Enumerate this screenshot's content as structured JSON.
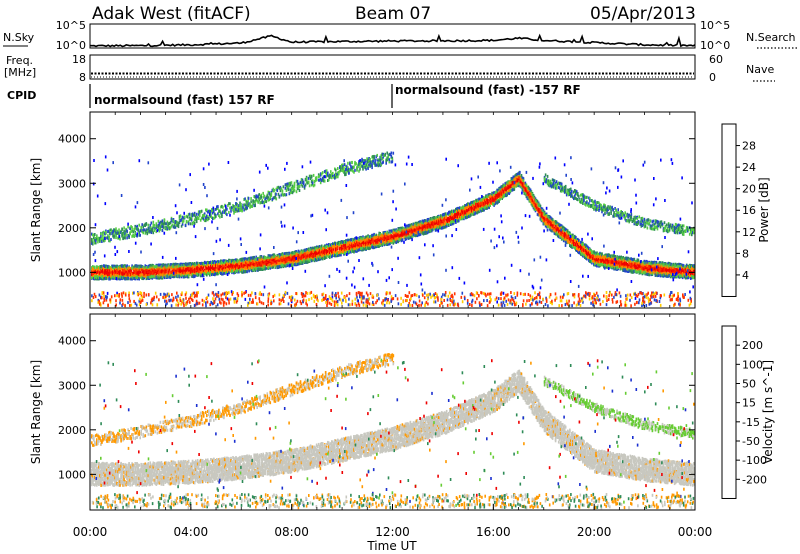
{
  "header": {
    "station": "Adak West (fitACF)",
    "beam": "Beam 07",
    "date": "05/Apr/2013"
  },
  "chart_data": [
    {
      "type": "line",
      "title": "",
      "panel": "nsky-nsearch",
      "xlabel": "",
      "left_label": "N.Sky",
      "left_ticks": [
        "10^5",
        "10^0"
      ],
      "right_label": "N.Search",
      "right_ticks": [
        "10^5",
        "10^0"
      ],
      "x_hours": [
        0,
        2,
        4,
        6,
        7.2,
        8,
        10,
        12,
        14,
        16,
        17,
        18,
        20,
        22,
        24
      ],
      "y_fraction": [
        0.05,
        0.06,
        0.1,
        0.18,
        0.5,
        0.22,
        0.25,
        0.27,
        0.28,
        0.3,
        0.4,
        0.3,
        0.2,
        0.1,
        0.06
      ]
    },
    {
      "type": "line",
      "panel": "freq-nave",
      "left_label": "Freq.",
      "left_unit": "[MHz]",
      "left_ticks": [
        "18",
        "8"
      ],
      "right_label": "Nave",
      "right_ticks": [
        "60",
        "0"
      ],
      "freq_mhz": 10.5,
      "nave": 0
    },
    {
      "type": "table",
      "panel": "cpid",
      "label": "CPID",
      "segments": [
        {
          "start_hour": 0,
          "end_hour": 12,
          "text": "normalsound (fast) 157 RF"
        },
        {
          "start_hour": 12,
          "end_hour": 24,
          "text": "normalsound (fast) -157 RF"
        }
      ]
    },
    {
      "type": "heatmap",
      "panel": "power",
      "ylabel": "Slant Range [km]",
      "ylim": [
        200,
        4600
      ],
      "yticks": [
        1000,
        2000,
        3000,
        4000
      ],
      "xlim": [
        0,
        24
      ],
      "colorbar_label": "Power [dB]",
      "colorbar_ticks": [
        4,
        8,
        12,
        16,
        20,
        24,
        28
      ],
      "colorbar_range": [
        0,
        32
      ],
      "colors": [
        "#0000ff",
        "#2244cc",
        "#2e8b57",
        "#55cc44",
        "#ffcc00",
        "#ff8800",
        "#ff3300",
        "#ee0000"
      ],
      "bands": [
        {
          "hours": [
            0,
            2,
            4,
            6,
            8,
            10,
            12,
            14,
            16,
            17,
            18,
            20,
            22,
            24
          ],
          "range_km": [
            1000,
            1000,
            1050,
            1150,
            1300,
            1550,
            1800,
            2150,
            2650,
            3100,
            2200,
            1300,
            1100,
            1000
          ],
          "width_km": 300,
          "level_db": 26
        },
        {
          "hours": [
            0,
            2,
            4,
            6,
            8,
            10,
            12
          ],
          "range_km": [
            1750,
            1950,
            2200,
            2500,
            2900,
            3300,
            3600
          ],
          "width_km": 250,
          "level_db": 12
        },
        {
          "hours": [
            18,
            19,
            20,
            22,
            24
          ],
          "range_km": [
            3100,
            2800,
            2500,
            2100,
            1900
          ],
          "width_km": 200,
          "level_db": 10
        }
      ]
    },
    {
      "type": "heatmap",
      "panel": "velocity",
      "ylabel": "Slant Range [km]",
      "ylim": [
        200,
        4600
      ],
      "yticks": [
        1000,
        2000,
        3000,
        4000
      ],
      "xlim": [
        0,
        24
      ],
      "xticks": [
        "00:00",
        "04:00",
        "08:00",
        "12:00",
        "16:00",
        "20:00",
        "00:00"
      ],
      "xlabel": "Time UT",
      "colorbar_label": "Velocity [m s^-1]",
      "colorbar_ticks": [
        200,
        100,
        50,
        15,
        -15,
        -50,
        -100,
        -200
      ],
      "colors": [
        "#1a2fd0",
        "#2e8b57",
        "#66cc33",
        "#c8c8c0",
        "#ff9900",
        "#ff5500",
        "#ee0000"
      ],
      "bands": [
        {
          "hours": [
            0,
            2,
            4,
            6,
            8,
            10,
            12,
            14,
            16,
            17,
            18,
            20,
            22,
            24
          ],
          "range_km": [
            1000,
            1000,
            1050,
            1150,
            1300,
            1550,
            1800,
            2150,
            2650,
            3100,
            2200,
            1300,
            1100,
            1000
          ],
          "width_km": 500,
          "velocity": 0
        },
        {
          "hours": [
            0,
            2,
            4,
            6,
            8,
            10,
            12
          ],
          "range_km": [
            1750,
            1950,
            2200,
            2500,
            2900,
            3300,
            3600
          ],
          "width_km": 250,
          "velocity": -30
        },
        {
          "hours": [
            18,
            19,
            20,
            22,
            24
          ],
          "range_km": [
            3100,
            2800,
            2500,
            2100,
            1900
          ],
          "width_km": 200,
          "velocity": 20
        }
      ]
    }
  ]
}
